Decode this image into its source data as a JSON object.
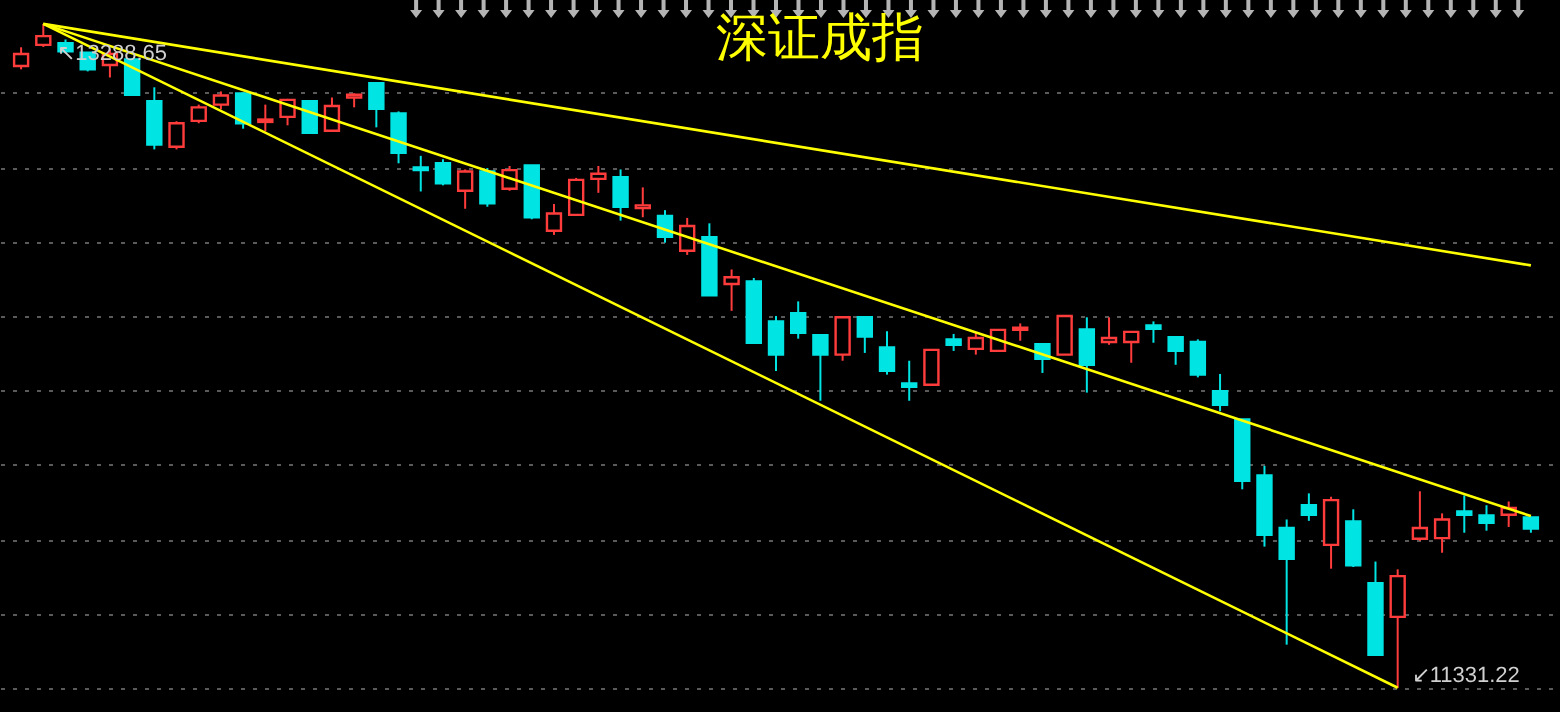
{
  "chart_data": {
    "type": "candlestick",
    "title": "深证成指",
    "categories": [
      null,
      null,
      null,
      null,
      null,
      null,
      null,
      null,
      null,
      null,
      null,
      null,
      null,
      null,
      null,
      null,
      null,
      null,
      null,
      null,
      null,
      null,
      null,
      null,
      null,
      null,
      null,
      null,
      null,
      null,
      null,
      null,
      null,
      null,
      null,
      null,
      null,
      null,
      null,
      null,
      null,
      null,
      null,
      null,
      null,
      null,
      null,
      null,
      null,
      null,
      null,
      null,
      null,
      null,
      null,
      null,
      null,
      null,
      null,
      null,
      null,
      null,
      null,
      null,
      null,
      null,
      null,
      null,
      null
    ],
    "ohlc": [
      [
        13165,
        13220,
        13155,
        13200
      ],
      [
        13227,
        13288.65,
        13221,
        13253
      ],
      [
        13232,
        13243,
        13202,
        13208
      ],
      [
        13204,
        13204,
        13149,
        13155
      ],
      [
        13168,
        13214,
        13131,
        13200
      ],
      [
        13184,
        13184,
        13078,
        13080
      ],
      [
        13061,
        13102,
        12919,
        12933
      ],
      [
        12927,
        13002,
        12919,
        12996
      ],
      [
        13003,
        13051,
        12996,
        13043
      ],
      [
        13051,
        13090,
        13037,
        13078
      ],
      [
        13084,
        13084,
        12980,
        12996
      ],
      [
        13000,
        13051,
        12972,
        13007
      ],
      [
        13015,
        13068,
        12990,
        13065
      ],
      [
        13061,
        13061,
        12966,
        12968
      ],
      [
        12974,
        13072,
        12974,
        13047
      ],
      [
        13072,
        13084,
        13043,
        13080
      ],
      [
        13114,
        13114,
        12984,
        13039
      ],
      [
        13025,
        13031,
        12878,
        12909
      ],
      [
        12866,
        12900,
        12795,
        12858
      ],
      [
        12878,
        12890,
        12813,
        12819
      ],
      [
        12797,
        12860,
        12744,
        12854
      ],
      [
        12854,
        12864,
        12750,
        12760
      ],
      [
        12803,
        12870,
        12797,
        12858
      ],
      [
        12872,
        12872,
        12713,
        12719
      ],
      [
        12679,
        12758,
        12667,
        12730
      ],
      [
        12726,
        12835,
        12726,
        12829
      ],
      [
        12832,
        12870,
        12791,
        12847
      ],
      [
        12837,
        12860,
        12709,
        12750
      ],
      [
        12746,
        12807,
        12719,
        12754
      ],
      [
        12723,
        12740,
        12644,
        12661
      ],
      [
        12620,
        12717,
        12608,
        12693
      ],
      [
        12660,
        12701,
        12489,
        12489
      ],
      [
        12522,
        12565,
        12443,
        12542
      ],
      [
        12530,
        12540,
        12349,
        12349
      ],
      [
        12412,
        12428,
        12266,
        12314
      ],
      [
        12436,
        12471,
        12361,
        12378
      ],
      [
        12371,
        12371,
        12178,
        12314
      ],
      [
        12314,
        12424,
        12296,
        12424
      ],
      [
        12424,
        12424,
        12319,
        12367
      ],
      [
        12335,
        12383,
        12255,
        12266
      ],
      [
        12229,
        12296,
        12178,
        12219
      ],
      [
        12225,
        12328,
        12225,
        12328
      ],
      [
        12359,
        12375,
        12325,
        12343
      ],
      [
        12331,
        12378,
        12314,
        12363
      ],
      [
        12325,
        12387,
        12325,
        12387
      ],
      [
        12387,
        12406,
        12355,
        12393
      ],
      [
        12345,
        12345,
        12260,
        12302
      ],
      [
        12314,
        12428,
        12314,
        12428
      ],
      [
        12388,
        12424,
        12202,
        12284
      ],
      [
        12351,
        12424,
        12343,
        12363
      ],
      [
        12351,
        12381,
        12290,
        12381
      ],
      [
        12400,
        12412,
        12349,
        12390
      ],
      [
        12365,
        12365,
        12284,
        12325
      ],
      [
        12351,
        12359,
        12247,
        12255
      ],
      [
        12206,
        12257,
        12147,
        12166
      ],
      [
        12123,
        12123,
        11917,
        11942
      ],
      [
        11958,
        11986,
        11748,
        11783
      ],
      [
        11803,
        11828,
        11459,
        11712
      ],
      [
        11870,
        11905,
        11824,
        11842
      ],
      [
        11753,
        11895,
        11683,
        11885
      ],
      [
        11822,
        11858,
        11688,
        11693
      ],
      [
        11640,
        11704,
        11429,
        11429
      ],
      [
        11541,
        11681,
        11331.22,
        11661
      ],
      [
        11771,
        11911,
        11765,
        11803
      ],
      [
        11773,
        11846,
        11730,
        11828
      ],
      [
        11852,
        11899,
        11789,
        11842
      ],
      [
        11840,
        11870,
        11795,
        11818
      ],
      [
        11842,
        11881,
        11806,
        11862
      ],
      [
        11834,
        11834,
        11789,
        11801
      ]
    ],
    "colors": [
      "#ff3c3c",
      "#ff3c3c",
      "#00e4e4",
      "#00e4e4",
      "#ff3c3c",
      "#00e4e4",
      "#00e4e4",
      "#ff3c3c",
      "#ff3c3c",
      "#ff3c3c",
      "#00e4e4",
      "#ff3c3c",
      "#ff3c3c",
      "#00e4e4",
      "#ff3c3c",
      "#ff3c3c",
      "#00e4e4",
      "#00e4e4",
      "#00e4e4",
      "#00e4e4",
      "#ff3c3c",
      "#00e4e4",
      "#ff3c3c",
      "#00e4e4",
      "#ff3c3c",
      "#ff3c3c",
      "#ff3c3c",
      "#00e4e4",
      "#ff3c3c",
      "#00e4e4",
      "#ff3c3c",
      "#00e4e4",
      "#ff3c3c",
      "#00e4e4",
      "#00e4e4",
      "#00e4e4",
      "#00e4e4",
      "#ff3c3c",
      "#00e4e4",
      "#00e4e4",
      "#00e4e4",
      "#ff3c3c",
      "#00e4e4",
      "#ff3c3c",
      "#ff3c3c",
      "#ff3c3c",
      "#00e4e4",
      "#ff3c3c",
      "#00e4e4",
      "#ff3c3c",
      "#ff3c3c",
      "#00e4e4",
      "#00e4e4",
      "#00e4e4",
      "#00e4e4",
      "#00e4e4",
      "#00e4e4",
      "#00e4e4",
      "#00e4e4",
      "#ff3c3c",
      "#00e4e4",
      "#00e4e4",
      "#ff3c3c",
      "#ff3c3c",
      "#ff3c3c",
      "#00e4e4",
      "#00e4e4",
      "#ff3c3c",
      "#00e4e4"
    ],
    "series": [
      {
        "type": "line",
        "color": "#ffff00",
        "values": [
          null,
          13289,
          null,
          null,
          null,
          null,
          null,
          null,
          null,
          null,
          null,
          null,
          null,
          null,
          null,
          null,
          null,
          null,
          null,
          null,
          null,
          null,
          null,
          null,
          null,
          null,
          null,
          null,
          null,
          null,
          null,
          null,
          null,
          null,
          null,
          null,
          null,
          null,
          null,
          null,
          null,
          null,
          null,
          null,
          null,
          null,
          null,
          null,
          null,
          null,
          null,
          null,
          null,
          null,
          null,
          null,
          null,
          null,
          null,
          null,
          null,
          null,
          null,
          null,
          null,
          null,
          null,
          null,
          12577
        ],
        "line_style": "solid"
      },
      {
        "type": "line",
        "color": "#ffff00",
        "values": [
          null,
          13289,
          null,
          null,
          null,
          null,
          null,
          null,
          null,
          null,
          null,
          null,
          null,
          null,
          null,
          null,
          null,
          null,
          null,
          null,
          null,
          null,
          null,
          null,
          null,
          null,
          null,
          null,
          null,
          null,
          null,
          null,
          null,
          null,
          null,
          null,
          null,
          null,
          null,
          null,
          null,
          null,
          null,
          null,
          null,
          null,
          null,
          null,
          null,
          null,
          null,
          null,
          null,
          null,
          null,
          null,
          null,
          null,
          null,
          null,
          null,
          null,
          null,
          null,
          null,
          null,
          null,
          null,
          11838
        ]
      },
      {
        "type": "line",
        "color": "#ffff00",
        "values": [
          null,
          13289,
          null,
          null,
          null,
          null,
          null,
          null,
          null,
          null,
          null,
          null,
          null,
          null,
          null,
          null,
          null,
          null,
          null,
          null,
          null,
          null,
          null,
          null,
          null,
          null,
          null,
          null,
          null,
          null,
          null,
          null,
          null,
          null,
          null,
          null,
          null,
          null,
          null,
          null,
          null,
          null,
          null,
          null,
          null,
          null,
          null,
          null,
          null,
          null,
          null,
          null,
          null,
          null,
          null,
          null,
          null,
          null,
          null,
          null,
          null,
          null,
          11332,
          null,
          null,
          null,
          null,
          null,
          null
        ]
      }
    ],
    "annotations": [
      "↖13288.65",
      "↙11331.22"
    ],
    "yticks": [
      {
        "value": 11331.22,
        "label": null
      },
      {
        "value": 11551,
        "label": null
      },
      {
        "value": 11770,
        "label": null
      },
      {
        "value": 11989,
        "label": null
      },
      {
        "value": 12209,
        "label": null
      },
      {
        "value": 12428,
        "label": null
      },
      {
        "value": 12647,
        "label": null
      },
      {
        "value": 12867,
        "label": null
      },
      {
        "value": 13086,
        "label": null
      }
    ],
    "grid": "y",
    "tick_labels": false
  }
}
